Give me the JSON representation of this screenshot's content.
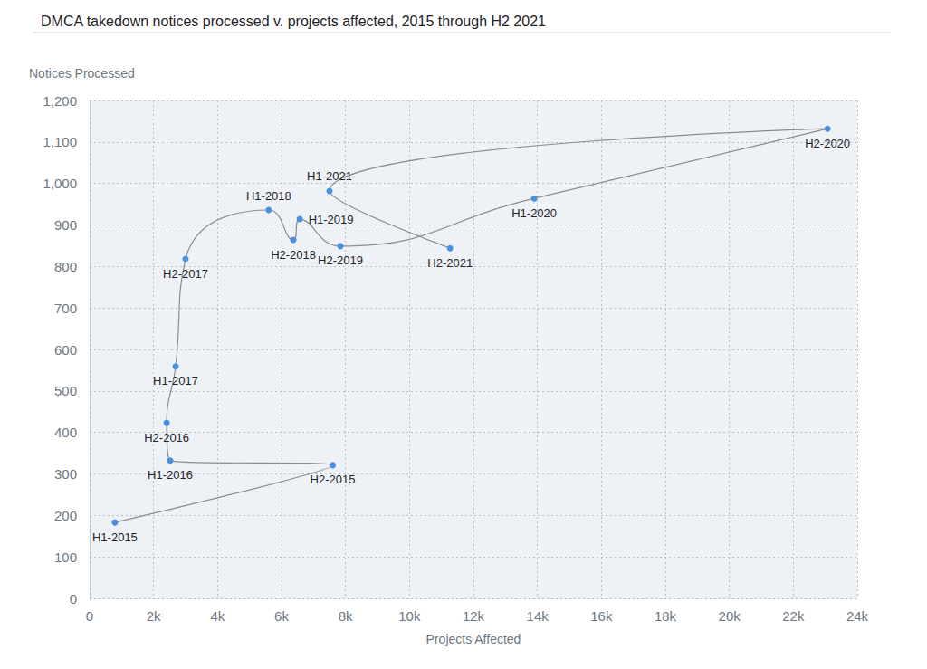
{
  "chart_data": {
    "type": "line",
    "title": "DMCA takedown notices processed v. projects affected, 2015 through H2 2021",
    "x_label": "Projects Affected",
    "y_label": "Notices Processed",
    "labels": [
      "H1-2015",
      "H2-2015",
      "H1-2016",
      "H2-2016",
      "H1-2017",
      "H2-2017",
      "H1-2018",
      "H2-2018",
      "H1-2019",
      "H2-2019",
      "H1-2020",
      "H2-2020",
      "H1-2021",
      "H2-2021"
    ],
    "x": [
      790,
      7600,
      2520,
      2410,
      2690,
      3000,
      5600,
      6370,
      6570,
      7840,
      13900,
      23070,
      7500,
      11270
    ],
    "values": [
      183,
      321,
      332,
      423,
      559,
      818,
      936,
      864,
      914,
      849,
      964,
      1132,
      982,
      844
    ],
    "color": "#4a90e2",
    "marker": "circle",
    "line_style": "solid",
    "xlim": [
      0,
      24000
    ],
    "xticks": [
      0,
      {
        "value": 2000,
        "label": "2k"
      },
      {
        "value": 4000,
        "label": "4k"
      },
      {
        "value": 6000,
        "label": "6k"
      },
      {
        "value": 8000,
        "label": "8k"
      },
      {
        "value": 10000,
        "label": "10k"
      },
      {
        "value": 12000,
        "label": "12k"
      },
      {
        "value": 14000,
        "label": "14k"
      },
      {
        "value": 16000,
        "label": "16k"
      },
      {
        "value": 18000,
        "label": "18k"
      },
      {
        "value": 20000,
        "label": "20k"
      },
      {
        "value": 22000,
        "label": "22k"
      },
      {
        "value": 24000,
        "label": "24k"
      }
    ],
    "ylim": [
      0,
      1200
    ],
    "yticks": [
      0,
      100,
      200,
      300,
      400,
      500,
      600,
      700,
      800,
      900,
      {
        "value": 1000,
        "label": "1,000"
      },
      {
        "value": 1100,
        "label": "1,100"
      },
      {
        "value": 1200,
        "label": "1,200"
      }
    ],
    "grid": true
  }
}
